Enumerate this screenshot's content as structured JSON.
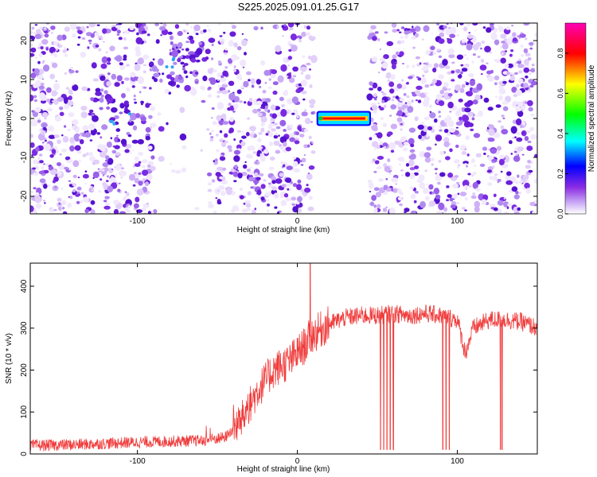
{
  "title": "S225.2025.091.01.25.G17",
  "chart_data": [
    {
      "type": "heatmap",
      "title": "S225.2025.091.01.25.G17",
      "xlabel": "Height of straight line (km)",
      "ylabel": "Frequency (Hz)",
      "xlim": [
        -167,
        150
      ],
      "ylim": [
        -24.5,
        24.5
      ],
      "x_ticks": [
        -100,
        0,
        100
      ],
      "y_ticks": [
        -20,
        -10,
        0,
        10,
        20
      ],
      "grid": false,
      "colorbar": {
        "label": "Normalized spectral amplitude",
        "range": [
          0,
          0.95
        ],
        "ticks": [
          0,
          0.2,
          0.4,
          0.6,
          0.8
        ],
        "colormap": [
          "#ffffff",
          "#c9a8f5",
          "#8a2be2",
          "#0000ff",
          "#00ffff",
          "#00ff00",
          "#ffff00",
          "#ff0000",
          "#ff00b4"
        ]
      },
      "regions": [
        {
          "x": [
            -167,
            13
          ],
          "density": "speckle",
          "note_values": "mostly 0.05-0.25"
        },
        {
          "x": [
            13,
            45
          ],
          "y": [
            -1,
            1
          ],
          "peak_amplitude": 0.95
        },
        {
          "x": [
            45,
            150
          ],
          "density": "speckle",
          "note_values": "mostly 0.05-0.25"
        }
      ],
      "blobs": [
        {
          "x": -110,
          "y": 0,
          "amplitude": 0.3
        },
        {
          "x": -75,
          "y": 15,
          "amplitude": 0.3
        }
      ]
    },
    {
      "type": "line",
      "xlabel": "Height of straight line (km)",
      "ylabel": "SNR (10 * v/v)",
      "xlim": [
        -167,
        150
      ],
      "ylim": [
        0,
        455
      ],
      "x_ticks": [
        -100,
        0,
        100
      ],
      "y_ticks": [
        0,
        100,
        200,
        300,
        400
      ],
      "grid": false,
      "series": [
        {
          "color": "#f03c3c",
          "x": [
            -167,
            -140,
            -120,
            -100,
            -80,
            -60,
            -45,
            -35,
            -25,
            -15,
            -5,
            0,
            5,
            8,
            12,
            20,
            30,
            40,
            50,
            60,
            70,
            80,
            90,
            100,
            105,
            110,
            120,
            130,
            140,
            150
          ],
          "y": [
            20,
            22,
            25,
            28,
            30,
            32,
            40,
            80,
            150,
            200,
            220,
            240,
            260,
            280,
            290,
            310,
            325,
            330,
            330,
            335,
            330,
            335,
            330,
            320,
            240,
            300,
            320,
            320,
            315,
            300
          ]
        }
      ],
      "spikes": [
        {
          "x": 8,
          "y": 455
        },
        {
          "x": 52,
          "y": 10
        },
        {
          "x": 54,
          "y": 10
        },
        {
          "x": 56,
          "y": 10
        },
        {
          "x": 58,
          "y": 10
        },
        {
          "x": 60,
          "y": 10
        },
        {
          "x": 91,
          "y": 10
        },
        {
          "x": 93,
          "y": 10
        },
        {
          "x": 95,
          "y": 10
        },
        {
          "x": 127,
          "y": 10
        },
        {
          "x": 128,
          "y": 10
        }
      ]
    }
  ]
}
